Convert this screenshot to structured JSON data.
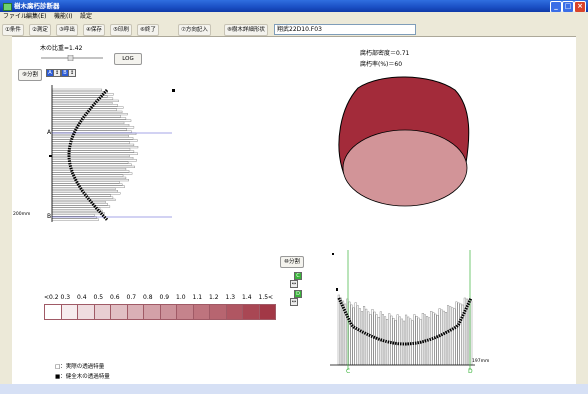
{
  "window": {
    "title": "樹木腐朽診断器"
  },
  "menu": [
    "ファイル",
    "編集(E)",
    "機能(I)",
    "設定"
  ],
  "toolbar": {
    "buttons": [
      "①条件",
      "②測定",
      "③呼出",
      "④保存",
      "⑤印刷",
      "⑥終了",
      "⑦方向記入",
      "⑧樹木詳細形状"
    ],
    "path": "翔武22D10.F03"
  },
  "left_panel": {
    "ratio_label": "木の比重=1.42",
    "log_button": "LOG",
    "split_button": "⑨分割",
    "spin_a": "A",
    "spin_b": "B",
    "marker_a": "A",
    "marker_b": "B",
    "depth_label": "200mm"
  },
  "cross_section": {
    "decay_density": "腐朽部密度＝0.71",
    "decay_rate": "腐朽率(%)＝60",
    "colors": {
      "outer": "#a32b3a",
      "inner": "#d29498"
    }
  },
  "scale": {
    "labels": [
      "<0.2",
      "0.3",
      "0.4",
      "0.5",
      "0.6",
      "0.7",
      "0.8",
      "0.9",
      "1.0",
      "1.1",
      "1.2",
      "1.3",
      "1.4",
      "1.5<"
    ],
    "colors": [
      "#ffffff",
      "#f6ecee",
      "#efdde0",
      "#e8ced2",
      "#e1bfc4",
      "#dab0b6",
      "#d3a1a8",
      "#cc929a",
      "#c5838c",
      "#be747e",
      "#b76570",
      "#b05662",
      "#a94754",
      "#a23846"
    ]
  },
  "legend": {
    "line1": "□：実際の透過特量",
    "line2": "■：健全木の透過特量"
  },
  "bottom_panel": {
    "split_button": "⑩分割",
    "marker_c": "C",
    "marker_d": "D",
    "size_label": "197mm"
  }
}
